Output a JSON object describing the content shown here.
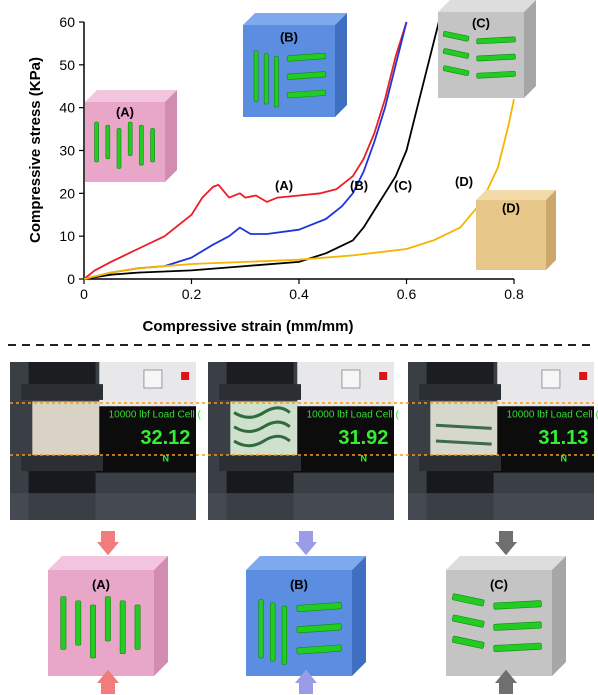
{
  "chart_data": {
    "type": "line",
    "title": "",
    "xlabel": "Compressive strain (mm/mm)",
    "ylabel": "Compressive stress (KPa)",
    "xlim": [
      0,
      0.8
    ],
    "ylim": [
      0,
      60
    ],
    "x_ticks": [
      "0",
      "0.2",
      "0.4",
      "0.6",
      "0.8"
    ],
    "y_ticks": [
      "0",
      "10",
      "20",
      "30",
      "40",
      "50",
      "60"
    ],
    "grid": false,
    "series": [
      {
        "name": "(A)",
        "color": "#ee1c25",
        "x": [
          0,
          0.02,
          0.05,
          0.1,
          0.15,
          0.2,
          0.22,
          0.24,
          0.25,
          0.27,
          0.29,
          0.3,
          0.32,
          0.34,
          0.36,
          0.4,
          0.44,
          0.47,
          0.5,
          0.52,
          0.54,
          0.56,
          0.58,
          0.6
        ],
        "y": [
          0,
          2,
          4,
          7,
          10,
          15,
          19,
          21.5,
          22,
          19,
          20,
          19,
          19.5,
          18,
          19,
          19.5,
          20,
          21,
          24,
          28,
          34,
          42,
          52,
          60
        ]
      },
      {
        "name": "(B)",
        "color": "#1f35d9",
        "x": [
          0,
          0.05,
          0.1,
          0.15,
          0.2,
          0.24,
          0.27,
          0.29,
          0.31,
          0.34,
          0.4,
          0.45,
          0.48,
          0.5,
          0.52,
          0.54,
          0.56,
          0.58,
          0.6
        ],
        "y": [
          0,
          1.5,
          2.5,
          3,
          5,
          8,
          10,
          12,
          10.5,
          10.5,
          11.5,
          14,
          17,
          20,
          25,
          32,
          40,
          50,
          60
        ]
      },
      {
        "name": "(C)",
        "color": "#000000",
        "x": [
          0,
          0.05,
          0.1,
          0.2,
          0.3,
          0.4,
          0.45,
          0.5,
          0.52,
          0.55,
          0.58,
          0.6,
          0.62,
          0.64,
          0.66
        ],
        "y": [
          0,
          1,
          1.5,
          2,
          3,
          4,
          6,
          9,
          12,
          18,
          24,
          30,
          40,
          50,
          60
        ]
      },
      {
        "name": "(D)",
        "color": "#f5b400",
        "x": [
          0,
          0.05,
          0.1,
          0.2,
          0.3,
          0.4,
          0.5,
          0.6,
          0.65,
          0.7,
          0.74,
          0.77,
          0.79,
          0.8
        ],
        "y": [
          0,
          1.5,
          2.5,
          3.5,
          4,
          4.5,
          5.5,
          7,
          9,
          12,
          18,
          26,
          36,
          42
        ]
      }
    ],
    "annotations": [
      "(A)",
      "(B)",
      "(C)",
      "(D)"
    ]
  },
  "cube_labels": [
    "(A)",
    "(B)",
    "(C)",
    "(D)"
  ],
  "load_cell": {
    "label": "10000 lbf Load Cell (",
    "values": [
      "32.12",
      "31.92",
      "31.13"
    ],
    "unit": "N"
  },
  "colors": {
    "cube_a": "#e8a6c8",
    "cube_b": "#5b8ee0",
    "cube_c": "#c4c4c4",
    "cube_d": "#e6c689",
    "rod": "#22cc22",
    "arrow_a": "#f27b7b",
    "arrow_b": "#9b9ce8",
    "arrow_c": "#6f6f6f"
  }
}
